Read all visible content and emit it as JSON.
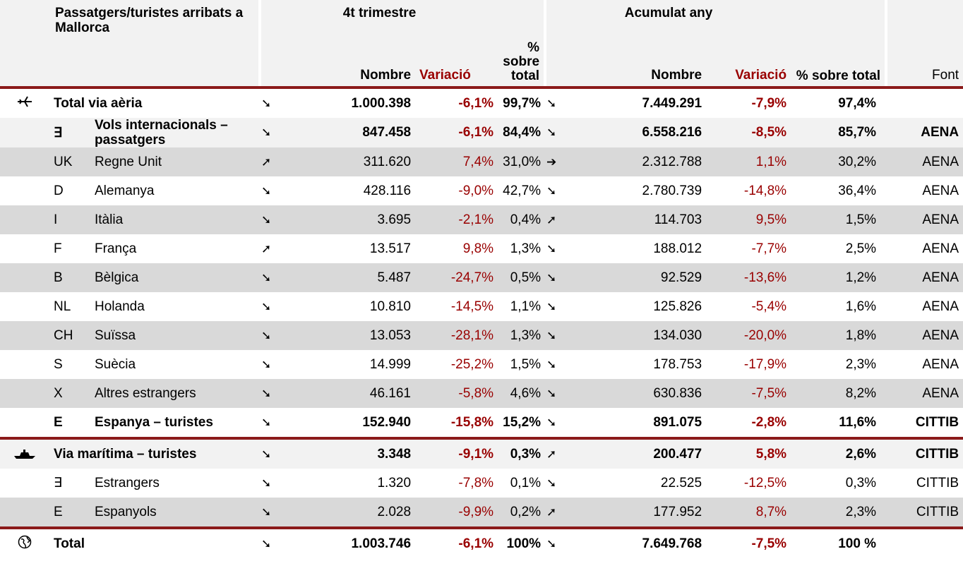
{
  "header": {
    "title": "Passatgers/turistes arribats a Mallorca",
    "groups": [
      "4t trimestre",
      "Acumulat any"
    ],
    "columns": {
      "nombre": "Nombre",
      "variacio": "Variació",
      "pct": "% sobre total",
      "font": "Font"
    }
  },
  "rows": [
    {
      "name": "Total via aèria",
      "q_trend": "➘",
      "q_nombre": "1.000.398",
      "q_var": "-6,1%",
      "q_pct": "99,7%",
      "a_trend": "➘",
      "a_nombre": "7.449.291",
      "a_var": "-7,9%",
      "a_pct": "97,4%"
    },
    {
      "code": "∃",
      "name": "Vols internacionals – passatgers",
      "q_trend": "➘",
      "q_nombre": "847.458",
      "q_var": "-6,1%",
      "q_pct": "84,4%",
      "a_trend": "➘",
      "a_nombre": "6.558.216",
      "a_var": "-8,5%",
      "a_pct": "85,7%",
      "font": "AENA"
    },
    {
      "code": "UK",
      "name": "Regne Unit",
      "q_trend": "➚",
      "q_nombre": "311.620",
      "q_var": "7,4%",
      "q_pct": "31,0%",
      "a_trend": "➔",
      "a_nombre": "2.312.788",
      "a_var": "1,1%",
      "a_pct": "30,2%",
      "font": "AENA"
    },
    {
      "code": "D",
      "name": "Alemanya",
      "q_trend": "➘",
      "q_nombre": "428.116",
      "q_var": "-9,0%",
      "q_pct": "42,7%",
      "a_trend": "➘",
      "a_nombre": "2.780.739",
      "a_var": "-14,8%",
      "a_pct": "36,4%",
      "font": "AENA"
    },
    {
      "code": "I",
      "name": "Itàlia",
      "q_trend": "➘",
      "q_nombre": "3.695",
      "q_var": "-2,1%",
      "q_pct": "0,4%",
      "a_trend": "➚",
      "a_nombre": "114.703",
      "a_var": "9,5%",
      "a_pct": "1,5%",
      "font": "AENA"
    },
    {
      "code": "F",
      "name": "França",
      "q_trend": "➚",
      "q_nombre": "13.517",
      "q_var": "9,8%",
      "q_pct": "1,3%",
      "a_trend": "➘",
      "a_nombre": "188.012",
      "a_var": "-7,7%",
      "a_pct": "2,5%",
      "font": "AENA"
    },
    {
      "code": "B",
      "name": "Bèlgica",
      "q_trend": "➘",
      "q_nombre": "5.487",
      "q_var": "-24,7%",
      "q_pct": "0,5%",
      "a_trend": "➘",
      "a_nombre": "92.529",
      "a_var": "-13,6%",
      "a_pct": "1,2%",
      "font": "AENA"
    },
    {
      "code": "NL",
      "name": "Holanda",
      "q_trend": "➘",
      "q_nombre": "10.810",
      "q_var": "-14,5%",
      "q_pct": "1,1%",
      "a_trend": "➘",
      "a_nombre": "125.826",
      "a_var": "-5,4%",
      "a_pct": "1,6%",
      "font": "AENA"
    },
    {
      "code": "CH",
      "name": "Suïssa",
      "q_trend": "➘",
      "q_nombre": "13.053",
      "q_var": "-28,1%",
      "q_pct": "1,3%",
      "a_trend": "➘",
      "a_nombre": "134.030",
      "a_var": "-20,0%",
      "a_pct": "1,8%",
      "font": "AENA"
    },
    {
      "code": "S",
      "name": "Suècia",
      "q_trend": "➘",
      "q_nombre": "14.999",
      "q_var": "-25,2%",
      "q_pct": "1,5%",
      "a_trend": "➘",
      "a_nombre": "178.753",
      "a_var": "-17,9%",
      "a_pct": "2,3%",
      "font": "AENA"
    },
    {
      "code": "X",
      "name": "Altres estrangers",
      "q_trend": "➘",
      "q_nombre": "46.161",
      "q_var": "-5,8%",
      "q_pct": "4,6%",
      "a_trend": "➘",
      "a_nombre": "630.836",
      "a_var": "-7,5%",
      "a_pct": "8,2%",
      "font": "AENA"
    },
    {
      "code": "E",
      "name": "Espanya – turistes",
      "q_trend": "➘",
      "q_nombre": "152.940",
      "q_var": "-15,8%",
      "q_pct": "15,2%",
      "a_trend": "➘",
      "a_nombre": "891.075",
      "a_var": "-2,8%",
      "a_pct": "11,6%",
      "font": "CITTIB"
    },
    {
      "name": "Via marítima – turistes",
      "q_trend": "➘",
      "q_nombre": "3.348",
      "q_var": "-9,1%",
      "q_pct": "0,3%",
      "a_trend": "➚",
      "a_nombre": "200.477",
      "a_var": "5,8%",
      "a_pct": "2,6%",
      "font": "CITTIB"
    },
    {
      "code": "∃",
      "name": "Estrangers",
      "q_trend": "➘",
      "q_nombre": "1.320",
      "q_var": "-7,8%",
      "q_pct": "0,1%",
      "a_trend": "➘",
      "a_nombre": "22.525",
      "a_var": "-12,5%",
      "a_pct": "0,3%",
      "font": "CITTIB"
    },
    {
      "code": "E",
      "name": "Espanyols",
      "q_trend": "➘",
      "q_nombre": "2.028",
      "q_var": "-9,9%",
      "q_pct": "0,2%",
      "a_trend": "➚",
      "a_nombre": "177.952",
      "a_var": "8,7%",
      "a_pct": "2,3%",
      "font": "CITTIB"
    },
    {
      "name": "Total",
      "q_trend": "➘",
      "q_nombre": "1.003.746",
      "q_var": "-6,1%",
      "q_pct": "100%",
      "a_trend": "➘",
      "a_nombre": "7.649.768",
      "a_var": "-7,5%",
      "a_pct": "100 %"
    }
  ]
}
